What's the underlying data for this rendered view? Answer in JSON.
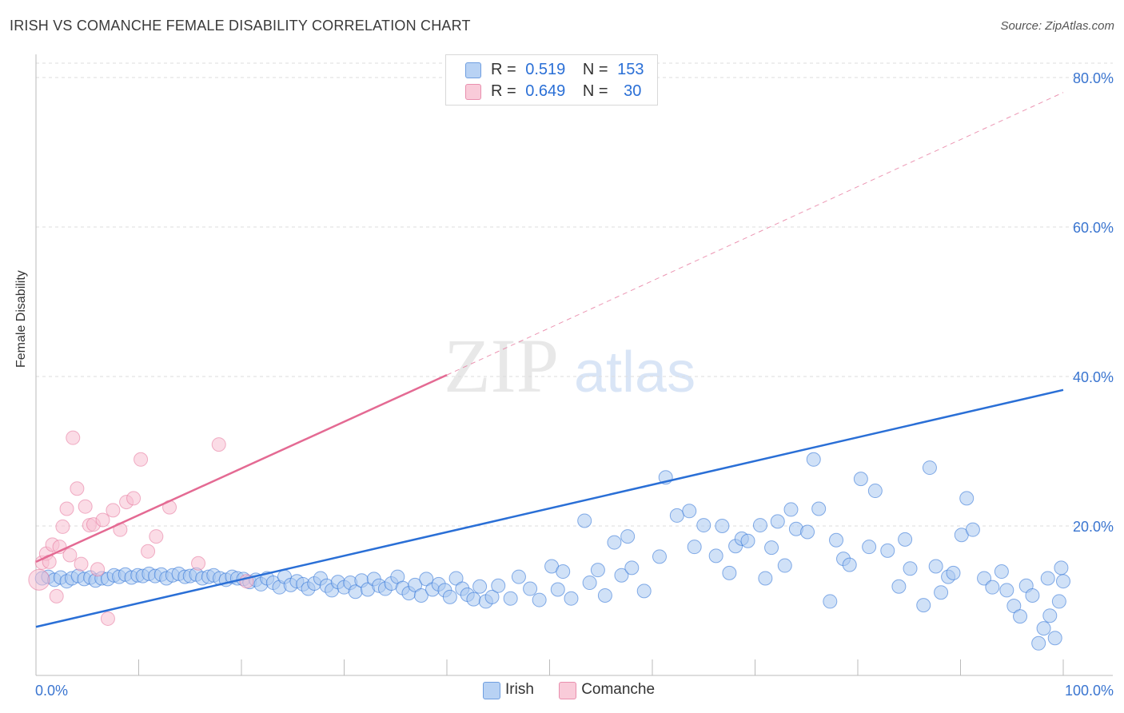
{
  "header": {
    "title": "IRISH VS COMANCHE FEMALE DISABILITY CORRELATION CHART",
    "source": "Source: ZipAtlas.com"
  },
  "watermark": {
    "zip": "ZIP",
    "atlas": "atlas"
  },
  "colors": {
    "irish": "#2a6fd6",
    "irish_fill": "#a9c8f0",
    "comanche": "#e46a93",
    "comanche_fill": "#f7c0d1",
    "axis_tick_label": "#3a75d0",
    "grid": "#dddddd"
  },
  "legend": {
    "rows": [
      {
        "r_label": "R =",
        "r_value": "0.519",
        "n_label": "N =",
        "n_value": "153"
      },
      {
        "r_label": "R =",
        "r_value": "0.649",
        "n_label": "N =",
        "n_value": "30"
      }
    ],
    "bottom": [
      "Irish",
      "Comanche"
    ]
  },
  "chart_data": {
    "type": "scatter",
    "title": "IRISH VS COMANCHE FEMALE DISABILITY CORRELATION CHART",
    "xlabel": "",
    "ylabel": "Female Disability",
    "xlim": [
      0,
      100
    ],
    "ylim": [
      0,
      82
    ],
    "x_tick_labels": [
      "0.0%",
      "100.0%"
    ],
    "y_ticks": [
      20,
      40,
      60,
      80
    ],
    "y_tick_labels": [
      "20.0%",
      "40.0%",
      "60.0%",
      "80.0%"
    ],
    "grid": true,
    "legend_position": "top-center",
    "series": [
      {
        "name": "Irish",
        "r": 0.519,
        "n": 153,
        "trend": {
          "x": [
            0,
            100
          ],
          "y": [
            6.5,
            38.2
          ],
          "style": "solid"
        },
        "points": [
          [
            0.6,
            13.0
          ],
          [
            1.2,
            13.2
          ],
          [
            1.8,
            12.8
          ],
          [
            2.4,
            13.1
          ],
          [
            3.0,
            12.6
          ],
          [
            3.5,
            13.0
          ],
          [
            4.1,
            13.3
          ],
          [
            4.7,
            12.9
          ],
          [
            5.3,
            13.1
          ],
          [
            5.8,
            12.7
          ],
          [
            6.4,
            13.0
          ],
          [
            7.0,
            12.9
          ],
          [
            7.6,
            13.4
          ],
          [
            8.1,
            13.2
          ],
          [
            8.7,
            13.5
          ],
          [
            9.3,
            13.1
          ],
          [
            9.9,
            13.4
          ],
          [
            10.4,
            13.3
          ],
          [
            11.0,
            13.6
          ],
          [
            11.6,
            13.3
          ],
          [
            12.2,
            13.5
          ],
          [
            12.7,
            13.0
          ],
          [
            13.3,
            13.4
          ],
          [
            13.9,
            13.6
          ],
          [
            14.5,
            13.2
          ],
          [
            15.0,
            13.3
          ],
          [
            15.6,
            13.5
          ],
          [
            16.2,
            13.0
          ],
          [
            16.8,
            13.2
          ],
          [
            17.3,
            13.4
          ],
          [
            17.9,
            13.0
          ],
          [
            18.5,
            12.8
          ],
          [
            19.1,
            13.2
          ],
          [
            19.6,
            13.0
          ],
          [
            20.2,
            12.9
          ],
          [
            20.8,
            12.5
          ],
          [
            21.4,
            12.8
          ],
          [
            21.9,
            12.2
          ],
          [
            22.5,
            13.0
          ],
          [
            23.1,
            12.4
          ],
          [
            23.7,
            11.8
          ],
          [
            24.2,
            13.2
          ],
          [
            24.8,
            12.1
          ],
          [
            25.4,
            12.6
          ],
          [
            26.0,
            12.2
          ],
          [
            26.5,
            11.6
          ],
          [
            27.1,
            12.3
          ],
          [
            27.7,
            13.0
          ],
          [
            28.3,
            12.0
          ],
          [
            28.8,
            11.4
          ],
          [
            29.4,
            12.5
          ],
          [
            30.0,
            11.8
          ],
          [
            30.6,
            12.4
          ],
          [
            31.1,
            11.2
          ],
          [
            31.7,
            12.7
          ],
          [
            32.3,
            11.5
          ],
          [
            32.9,
            12.9
          ],
          [
            33.4,
            12.0
          ],
          [
            34.0,
            11.6
          ],
          [
            34.6,
            12.3
          ],
          [
            35.2,
            13.2
          ],
          [
            35.7,
            11.7
          ],
          [
            36.3,
            11.0
          ],
          [
            36.9,
            12.1
          ],
          [
            37.5,
            10.7
          ],
          [
            38.0,
            12.9
          ],
          [
            38.6,
            11.5
          ],
          [
            39.2,
            12.2
          ],
          [
            39.8,
            11.4
          ],
          [
            40.3,
            10.5
          ],
          [
            40.9,
            13.0
          ],
          [
            41.5,
            11.6
          ],
          [
            42.0,
            10.8
          ],
          [
            42.6,
            10.2
          ],
          [
            43.2,
            11.9
          ],
          [
            43.8,
            9.9
          ],
          [
            44.4,
            10.5
          ],
          [
            45.0,
            12.0
          ],
          [
            46.2,
            10.3
          ],
          [
            47.0,
            13.2
          ],
          [
            48.1,
            11.6
          ],
          [
            49.0,
            10.1
          ],
          [
            50.2,
            14.6
          ],
          [
            50.8,
            11.5
          ],
          [
            51.3,
            13.9
          ],
          [
            52.1,
            10.3
          ],
          [
            53.4,
            20.7
          ],
          [
            53.9,
            12.4
          ],
          [
            54.7,
            14.1
          ],
          [
            55.4,
            10.7
          ],
          [
            56.3,
            17.8
          ],
          [
            57.0,
            13.4
          ],
          [
            57.6,
            18.6
          ],
          [
            58.0,
            14.4
          ],
          [
            59.2,
            11.3
          ],
          [
            60.7,
            15.9
          ],
          [
            61.3,
            26.5
          ],
          [
            62.4,
            21.4
          ],
          [
            63.6,
            22.0
          ],
          [
            64.1,
            17.2
          ],
          [
            65.0,
            20.1
          ],
          [
            66.2,
            16.0
          ],
          [
            66.8,
            20.0
          ],
          [
            67.5,
            13.7
          ],
          [
            68.1,
            17.3
          ],
          [
            68.7,
            18.3
          ],
          [
            69.3,
            18.0
          ],
          [
            70.5,
            20.1
          ],
          [
            71.0,
            13.0
          ],
          [
            71.6,
            17.1
          ],
          [
            72.2,
            20.6
          ],
          [
            72.9,
            14.7
          ],
          [
            73.5,
            22.2
          ],
          [
            74.0,
            19.6
          ],
          [
            75.1,
            19.2
          ],
          [
            75.7,
            28.9
          ],
          [
            76.2,
            22.3
          ],
          [
            77.3,
            9.9
          ],
          [
            77.9,
            18.1
          ],
          [
            78.6,
            15.6
          ],
          [
            79.2,
            14.8
          ],
          [
            80.3,
            26.3
          ],
          [
            81.1,
            17.2
          ],
          [
            81.7,
            24.7
          ],
          [
            82.9,
            16.7
          ],
          [
            84.0,
            11.9
          ],
          [
            84.6,
            18.2
          ],
          [
            85.1,
            14.3
          ],
          [
            86.4,
            9.4
          ],
          [
            87.0,
            27.8
          ],
          [
            87.6,
            14.6
          ],
          [
            88.1,
            11.1
          ],
          [
            88.8,
            13.2
          ],
          [
            89.3,
            13.7
          ],
          [
            90.1,
            18.8
          ],
          [
            90.6,
            23.7
          ],
          [
            91.2,
            19.5
          ],
          [
            92.3,
            13.0
          ],
          [
            93.1,
            11.8
          ],
          [
            94.0,
            13.9
          ],
          [
            94.5,
            11.4
          ],
          [
            95.2,
            9.3
          ],
          [
            95.8,
            7.9
          ],
          [
            96.4,
            12.0
          ],
          [
            97.0,
            10.7
          ],
          [
            97.6,
            4.3
          ],
          [
            98.1,
            6.3
          ],
          [
            98.7,
            8.0
          ],
          [
            99.2,
            5.0
          ],
          [
            99.6,
            9.9
          ],
          [
            100.0,
            12.6
          ],
          [
            98.5,
            13.0
          ],
          [
            99.8,
            14.4
          ]
        ]
      },
      {
        "name": "Comanche",
        "r": 0.649,
        "n": 30,
        "trend": {
          "x": [
            0,
            40
          ],
          "y": [
            15.2,
            40.2
          ],
          "style": "solid"
        },
        "trend_extension": {
          "x": [
            40,
            100
          ],
          "y": [
            40.2,
            78.0
          ],
          "style": "dashed"
        },
        "points": [
          [
            0.3,
            12.8
          ],
          [
            0.6,
            15.1
          ],
          [
            1.0,
            16.3
          ],
          [
            1.3,
            15.2
          ],
          [
            1.6,
            17.5
          ],
          [
            2.0,
            10.6
          ],
          [
            2.3,
            17.2
          ],
          [
            2.6,
            19.9
          ],
          [
            3.0,
            22.3
          ],
          [
            3.3,
            16.1
          ],
          [
            3.6,
            31.8
          ],
          [
            4.0,
            25.0
          ],
          [
            4.4,
            14.9
          ],
          [
            4.8,
            22.6
          ],
          [
            5.2,
            20.1
          ],
          [
            5.6,
            20.2
          ],
          [
            6.0,
            14.2
          ],
          [
            6.5,
            20.8
          ],
          [
            7.0,
            7.6
          ],
          [
            7.5,
            22.1
          ],
          [
            8.2,
            19.5
          ],
          [
            8.8,
            23.2
          ],
          [
            9.5,
            23.7
          ],
          [
            10.2,
            28.9
          ],
          [
            10.9,
            16.6
          ],
          [
            11.7,
            18.6
          ],
          [
            13.0,
            22.5
          ],
          [
            15.8,
            15.0
          ],
          [
            17.8,
            30.9
          ],
          [
            20.5,
            12.6
          ]
        ]
      }
    ]
  }
}
